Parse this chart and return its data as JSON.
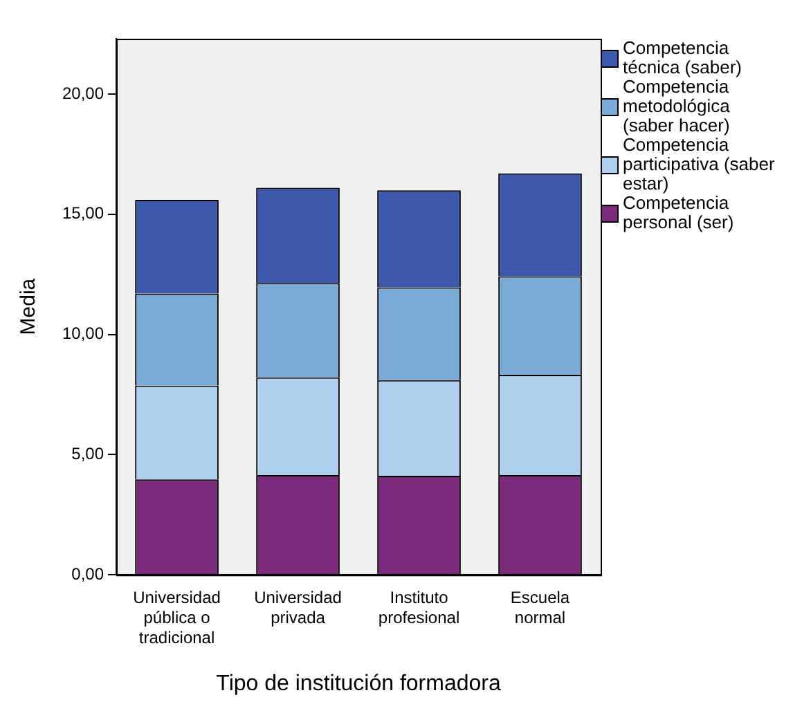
{
  "chart_data": {
    "type": "bar",
    "stacked": true,
    "xlabel": "Tipo de institución formadora",
    "ylabel": "Media",
    "categories": [
      "Universidad pública o tradicional",
      "Universidad privada",
      "Instituto profesional",
      "Escuela normal"
    ],
    "series": [
      {
        "name": "Competencia personal (ser)",
        "color": "#7b2a7c",
        "values": [
          3.97,
          4.15,
          4.12,
          4.15
        ]
      },
      {
        "name": "Competencia participativa (saber estar)",
        "color": "#aed0ee",
        "values": [
          3.9,
          4.06,
          3.98,
          4.17
        ]
      },
      {
        "name": "Competencia metodológica (saber hacer)",
        "color": "#7aaad6",
        "values": [
          3.83,
          3.93,
          3.86,
          4.1
        ]
      },
      {
        "name": "Competencia técnica (saber)",
        "color": "#3d59ab",
        "values": [
          3.9,
          3.96,
          4.03,
          4.28
        ]
      }
    ],
    "ylim": [
      0,
      22.3
    ],
    "yticks": [
      {
        "value": 0,
        "label": "0,00"
      },
      {
        "value": 5,
        "label": "5,00"
      },
      {
        "value": 10,
        "label": "10,00"
      },
      {
        "value": 15,
        "label": "15,00"
      },
      {
        "value": 20,
        "label": "20,00"
      }
    ],
    "grid": false,
    "legend": "right"
  }
}
